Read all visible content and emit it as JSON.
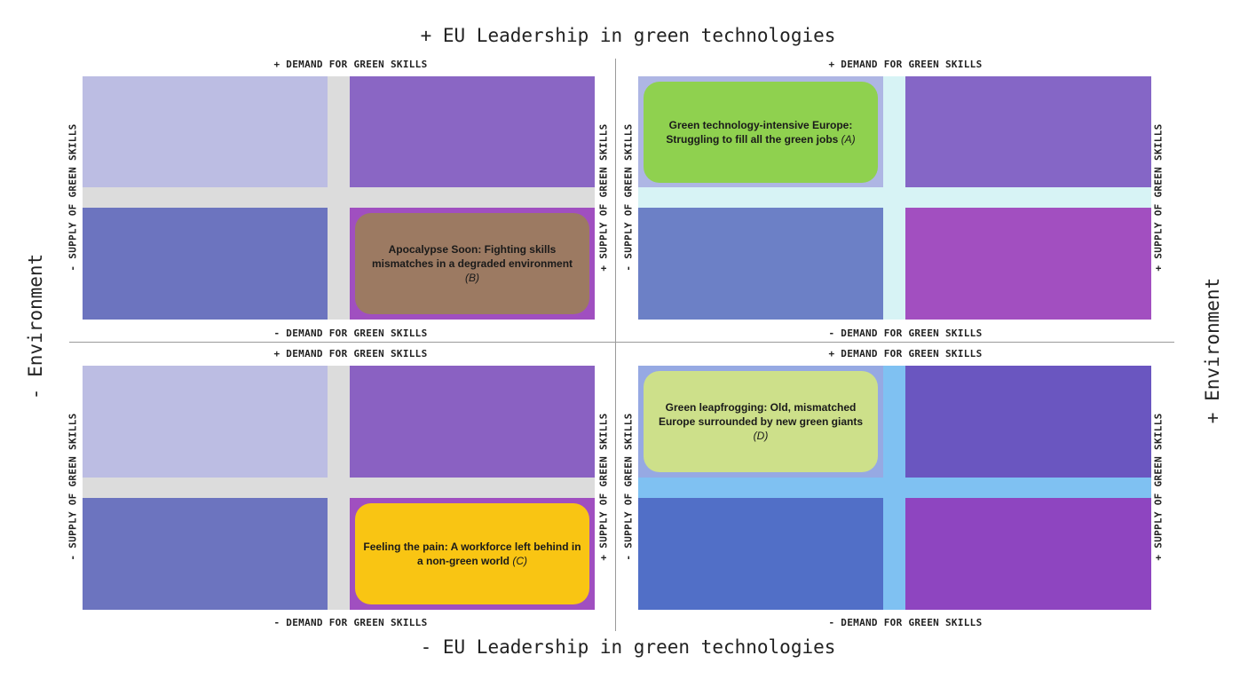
{
  "axes": {
    "top": "+ EU Leadership in green technologies",
    "bottom": "- EU Leadership in green technologies",
    "left": "- Environment",
    "right": "+ Environment"
  },
  "quadrant_labels": {
    "plus_demand": "+ DEMAND FOR GREEN SKILLS",
    "minus_demand": "- DEMAND FOR GREEN SKILLS",
    "minus_supply": "- SUPPLY OF GREEN SKILLS",
    "plus_supply": "+ SUPPLY OF GREEN SKILLS"
  },
  "scenarios": {
    "A": {
      "title": "Green technology-intensive Europe: Struggling to fill all the green jobs",
      "code": "(A)",
      "color": "#8fd14f"
    },
    "B": {
      "title": "Apocalypse Soon: Fighting skills mismatches in a degraded environment",
      "code": "(B)",
      "color": "#9c7a62"
    },
    "C": {
      "title": "Feeling the pain: A workforce left behind in a non-green world",
      "code": "(C)",
      "color": "#f9c513"
    },
    "D": {
      "title": "Green leapfrogging: Old, mismatched Europe surrounded by new green giants",
      "code": "(D)",
      "color": "#cde08a"
    }
  },
  "colors": {
    "light_lavender": "#bcbde3",
    "purple": "#8a66c4",
    "blue_violet": "#6c74bf",
    "magenta_purple": "#a04fc0",
    "grey_band": "#dcdcdc",
    "light_cyan_band": "#d7f3f5",
    "sky_band": "#7fc1f2"
  }
}
